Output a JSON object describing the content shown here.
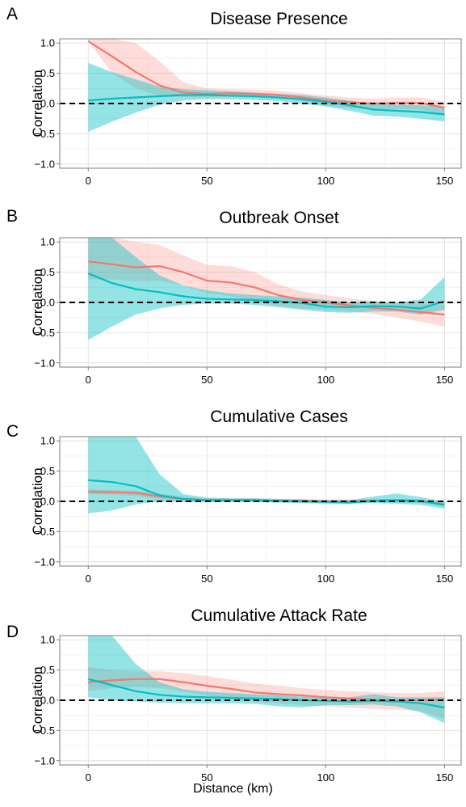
{
  "colors": {
    "red": "#F8766D",
    "teal": "#00BFC4"
  },
  "xlabel": "Distance (km)",
  "chart_data": [
    {
      "type": "line",
      "panel": "A",
      "title": "Disease Presence",
      "ylabel": "Correlation",
      "xlim": [
        -12,
        157
      ],
      "ylim": [
        -1.07,
        1.07
      ],
      "xticks": [
        0,
        50,
        100,
        150
      ],
      "xtick_labels": [
        "0",
        "50",
        "100",
        "150"
      ],
      "yticks": [
        1.0,
        0.5,
        0.0,
        -0.5,
        -1.0
      ],
      "ytick_labels": [
        "1.0",
        "0.5",
        "0.0",
        "−0.5",
        "−1.0"
      ],
      "reference_line": 0,
      "x": [
        0,
        10,
        20,
        30,
        40,
        50,
        60,
        70,
        80,
        90,
        100,
        110,
        120,
        130,
        140,
        150
      ],
      "series": [
        {
          "color": "red",
          "values": [
            1.03,
            0.78,
            0.52,
            0.3,
            0.18,
            0.16,
            0.17,
            0.16,
            0.14,
            0.1,
            0.05,
            0.02,
            0.0,
            0.01,
            0.01,
            -0.07
          ],
          "lower": [
            1.03,
            0.5,
            0.25,
            0.12,
            0.1,
            0.1,
            0.11,
            0.1,
            0.08,
            0.04,
            -0.03,
            -0.08,
            -0.1,
            -0.09,
            -0.1,
            -0.18
          ],
          "upper": [
            1.07,
            1.07,
            1.0,
            0.7,
            0.35,
            0.25,
            0.24,
            0.23,
            0.21,
            0.17,
            0.13,
            0.1,
            0.08,
            0.1,
            0.1,
            0.03
          ]
        },
        {
          "color": "teal",
          "values": [
            0.05,
            0.08,
            0.1,
            0.12,
            0.14,
            0.14,
            0.13,
            0.12,
            0.1,
            0.07,
            0.03,
            -0.03,
            -0.1,
            -0.12,
            -0.14,
            -0.18
          ],
          "lower": [
            -0.47,
            -0.3,
            -0.15,
            -0.02,
            0.05,
            0.07,
            0.07,
            0.06,
            0.04,
            0.0,
            -0.05,
            -0.12,
            -0.2,
            -0.22,
            -0.25,
            -0.3
          ],
          "upper": [
            0.67,
            0.52,
            0.4,
            0.28,
            0.24,
            0.22,
            0.2,
            0.18,
            0.16,
            0.14,
            0.1,
            0.05,
            0.0,
            -0.02,
            -0.03,
            -0.05
          ]
        }
      ]
    },
    {
      "type": "line",
      "panel": "B",
      "title": "Outbreak Onset",
      "ylabel": "Correlation",
      "xlim": [
        -12,
        157
      ],
      "ylim": [
        -1.07,
        1.07
      ],
      "xticks": [
        0,
        50,
        100,
        150
      ],
      "xtick_labels": [
        "0",
        "50",
        "100",
        "150"
      ],
      "yticks": [
        1.0,
        0.5,
        0.0,
        -0.5,
        -1.0
      ],
      "ytick_labels": [
        "1.0",
        "0.5",
        "0.0",
        "−0.5",
        "−1.0"
      ],
      "reference_line": 0,
      "x": [
        0,
        10,
        20,
        30,
        40,
        50,
        60,
        70,
        80,
        90,
        100,
        110,
        120,
        130,
        140,
        150
      ],
      "series": [
        {
          "color": "red",
          "values": [
            0.68,
            0.63,
            0.58,
            0.6,
            0.5,
            0.36,
            0.33,
            0.25,
            0.12,
            0.04,
            0.0,
            -0.05,
            -0.09,
            -0.12,
            -0.16,
            -0.2
          ],
          "lower": [
            0.38,
            0.38,
            0.35,
            0.36,
            0.28,
            0.15,
            0.1,
            0.02,
            -0.06,
            -0.1,
            -0.12,
            -0.15,
            -0.19,
            -0.25,
            -0.32,
            -0.4
          ],
          "upper": [
            1.07,
            1.07,
            1.0,
            0.95,
            0.78,
            0.62,
            0.6,
            0.5,
            0.3,
            0.18,
            0.12,
            0.07,
            0.02,
            0.0,
            -0.02,
            -0.04
          ]
        },
        {
          "color": "teal",
          "values": [
            0.48,
            0.32,
            0.22,
            0.17,
            0.1,
            0.06,
            0.05,
            0.04,
            0.02,
            -0.01,
            -0.07,
            -0.08,
            -0.06,
            -0.07,
            -0.1,
            0.02
          ],
          "lower": [
            -0.62,
            -0.4,
            -0.2,
            -0.1,
            -0.04,
            -0.02,
            -0.02,
            -0.04,
            -0.08,
            -0.12,
            -0.16,
            -0.17,
            -0.15,
            -0.15,
            -0.2,
            -0.12
          ],
          "upper": [
            1.07,
            1.07,
            0.75,
            0.45,
            0.28,
            0.2,
            0.15,
            0.12,
            0.1,
            0.08,
            0.04,
            0.0,
            0.02,
            0.0,
            0.05,
            0.42
          ]
        }
      ]
    },
    {
      "type": "line",
      "panel": "C",
      "title": "Cumulative Cases",
      "ylabel": "Correlation",
      "xlim": [
        -12,
        157
      ],
      "ylim": [
        -1.07,
        1.07
      ],
      "xticks": [
        0,
        50,
        100,
        150
      ],
      "xtick_labels": [
        "0",
        "50",
        "100",
        "150"
      ],
      "yticks": [
        1.0,
        0.5,
        0.0,
        -0.5,
        -1.0
      ],
      "ytick_labels": [
        "1.0",
        "0.5",
        "0.0",
        "−0.5",
        "−1.0"
      ],
      "reference_line": 0,
      "x": [
        0,
        10,
        20,
        30,
        40,
        50,
        60,
        70,
        80,
        90,
        100,
        110,
        120,
        130,
        140,
        150
      ],
      "series": [
        {
          "color": "red",
          "values": [
            0.16,
            0.15,
            0.14,
            0.08,
            0.04,
            0.02,
            0.02,
            0.02,
            0.01,
            0.01,
            0.0,
            0.0,
            0.01,
            0.01,
            0.0,
            -0.05
          ],
          "lower": [
            0.12,
            0.11,
            0.09,
            0.03,
            0.0,
            -0.01,
            -0.01,
            -0.01,
            -0.02,
            -0.02,
            -0.03,
            -0.03,
            -0.02,
            -0.02,
            -0.03,
            -0.08
          ],
          "upper": [
            0.2,
            0.19,
            0.18,
            0.13,
            0.08,
            0.05,
            0.05,
            0.05,
            0.04,
            0.04,
            0.03,
            0.03,
            0.04,
            0.04,
            0.03,
            -0.02
          ]
        },
        {
          "color": "teal",
          "values": [
            0.35,
            0.32,
            0.25,
            0.1,
            0.04,
            0.02,
            0.02,
            0.02,
            0.01,
            0.0,
            -0.01,
            -0.02,
            0.01,
            0.02,
            0.01,
            -0.06
          ],
          "lower": [
            -0.2,
            -0.15,
            -0.05,
            0.0,
            -0.01,
            -0.01,
            -0.01,
            -0.01,
            -0.02,
            -0.03,
            -0.04,
            -0.04,
            -0.03,
            -0.04,
            -0.06,
            -0.12
          ],
          "upper": [
            1.07,
            1.07,
            1.07,
            0.45,
            0.12,
            0.06,
            0.05,
            0.05,
            0.04,
            0.03,
            0.02,
            0.02,
            0.08,
            0.13,
            0.07,
            0.0
          ]
        }
      ]
    },
    {
      "type": "line",
      "panel": "D",
      "title": "Cumulative Attack Rate",
      "ylabel": "Correlation",
      "xlim": [
        -12,
        157
      ],
      "ylim": [
        -1.07,
        1.07
      ],
      "xticks": [
        0,
        50,
        100,
        150
      ],
      "xtick_labels": [
        "0",
        "50",
        "100",
        "150"
      ],
      "yticks": [
        1.0,
        0.5,
        0.0,
        -0.5,
        -1.0
      ],
      "ytick_labels": [
        "1.0",
        "0.5",
        "0.0",
        "−0.5",
        "−1.0"
      ],
      "reference_line": 0,
      "x": [
        0,
        10,
        20,
        30,
        40,
        50,
        60,
        70,
        80,
        90,
        100,
        110,
        120,
        130,
        140,
        150
      ],
      "series": [
        {
          "color": "red",
          "values": [
            0.3,
            0.33,
            0.35,
            0.35,
            0.3,
            0.24,
            0.19,
            0.13,
            0.1,
            0.08,
            0.05,
            0.03,
            0.01,
            0.0,
            0.0,
            0.01
          ],
          "lower": [
            0.15,
            0.2,
            0.22,
            0.2,
            0.14,
            0.08,
            0.03,
            -0.02,
            -0.05,
            -0.08,
            -0.1,
            -0.12,
            -0.14,
            -0.15,
            -0.18,
            -0.3
          ],
          "upper": [
            0.55,
            0.5,
            0.48,
            0.48,
            0.45,
            0.4,
            0.34,
            0.28,
            0.24,
            0.2,
            0.17,
            0.15,
            0.13,
            0.12,
            0.12,
            0.15
          ]
        },
        {
          "color": "teal",
          "values": [
            0.35,
            0.25,
            0.15,
            0.09,
            0.06,
            0.05,
            0.04,
            0.03,
            0.02,
            0.0,
            -0.01,
            -0.02,
            -0.01,
            -0.02,
            -0.05,
            -0.12
          ],
          "lower": [
            0.05,
            0.0,
            -0.02,
            -0.04,
            -0.05,
            -0.05,
            -0.05,
            -0.06,
            -0.1,
            -0.12,
            -0.08,
            -0.08,
            -0.07,
            -0.1,
            -0.2,
            -0.38
          ],
          "upper": [
            1.07,
            1.07,
            0.6,
            0.3,
            0.18,
            0.14,
            0.12,
            0.1,
            0.08,
            0.06,
            0.05,
            0.05,
            0.1,
            0.05,
            0.05,
            0.05
          ]
        }
      ]
    }
  ]
}
